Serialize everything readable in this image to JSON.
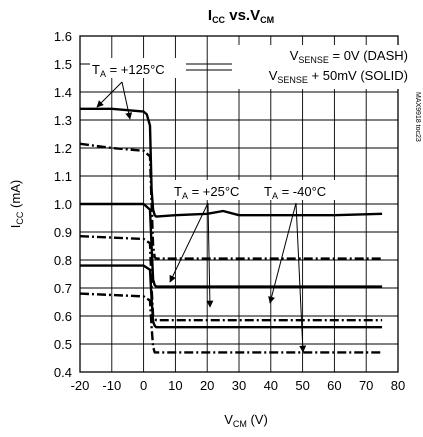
{
  "chart_data": {
    "type": "line",
    "title": {
      "main": "I",
      "main_sub": "CC",
      "mid": " vs.V",
      "mid_sub": "CM"
    },
    "xlabel": {
      "main": "V",
      "sub": "CM",
      "rest": " (V)"
    },
    "ylabel": {
      "main": "I",
      "sub": "CC",
      "rest": " (mA)"
    },
    "xlim": [
      -20,
      80
    ],
    "ylim": [
      0.4,
      1.6
    ],
    "xticks": [
      "-20",
      "-10",
      "0",
      "10",
      "20",
      "30",
      "40",
      "50",
      "60",
      "70",
      "80"
    ],
    "yticks": [
      "0.4",
      "0.5",
      "0.6",
      "0.7",
      "0.8",
      "0.9",
      "1.0",
      "1.1",
      "1.2",
      "1.3",
      "1.4",
      "1.5",
      "1.6"
    ],
    "grid": true,
    "legend_notes": [
      {
        "main": "V",
        "sub": "SENSE",
        "rest": " = 0V (DASH)"
      },
      {
        "main": "V",
        "sub": "SENSE",
        "rest": " + 50mV (SOLID)"
      }
    ],
    "annotations": [
      {
        "main": "T",
        "sub": "A",
        "rest": " = +125°C"
      },
      {
        "main": "T",
        "sub": "A",
        "rest": " = +25°C"
      },
      {
        "main": "T",
        "sub": "A",
        "rest": " = -40°C"
      }
    ],
    "side_code": "MAX9918 toc23",
    "series": [
      {
        "style": "solid",
        "x": [
          -20,
          -10,
          -5,
          0,
          1,
          2,
          2.5,
          3,
          3.5,
          4,
          10,
          20,
          25,
          30,
          40,
          50,
          60,
          75
        ],
        "y": [
          1.34,
          1.34,
          1.335,
          1.33,
          1.32,
          1.28,
          1.05,
          0.98,
          0.96,
          0.955,
          0.96,
          0.965,
          0.975,
          0.96,
          0.96,
          0.96,
          0.96,
          0.965
        ]
      },
      {
        "style": "dash",
        "x": [
          -20,
          -10,
          0,
          2,
          2.5,
          3,
          3.5,
          4,
          10,
          30,
          50,
          75
        ],
        "y": [
          1.215,
          1.2,
          1.19,
          1.17,
          1.0,
          0.85,
          0.81,
          0.805,
          0.805,
          0.805,
          0.805,
          0.805
        ]
      },
      {
        "style": "solid",
        "x": [
          -20,
          -10,
          0,
          2,
          2.5,
          3,
          3.5,
          4,
          10,
          30,
          50,
          75
        ],
        "y": [
          1.0,
          1.0,
          1.0,
          0.98,
          0.85,
          0.73,
          0.71,
          0.705,
          0.705,
          0.705,
          0.705,
          0.705
        ]
      },
      {
        "style": "dash",
        "x": [
          -20,
          -10,
          0,
          2,
          2.5,
          3,
          3.5,
          4,
          10,
          30,
          50,
          75
        ],
        "y": [
          0.885,
          0.88,
          0.875,
          0.86,
          0.7,
          0.6,
          0.59,
          0.585,
          0.585,
          0.585,
          0.585,
          0.585
        ]
      },
      {
        "style": "solid",
        "x": [
          -20,
          -10,
          0,
          2,
          2.5,
          3,
          3.5,
          4,
          10,
          30,
          50,
          75
        ],
        "y": [
          0.78,
          0.78,
          0.78,
          0.765,
          0.66,
          0.58,
          0.565,
          0.56,
          0.56,
          0.56,
          0.56,
          0.56
        ]
      },
      {
        "style": "dash",
        "x": [
          -20,
          -10,
          0,
          2,
          2.5,
          3,
          3.5,
          4,
          10,
          30,
          50,
          75
        ],
        "y": [
          0.68,
          0.675,
          0.67,
          0.655,
          0.56,
          0.49,
          0.47,
          0.47,
          0.47,
          0.47,
          0.47,
          0.47
        ]
      }
    ]
  }
}
